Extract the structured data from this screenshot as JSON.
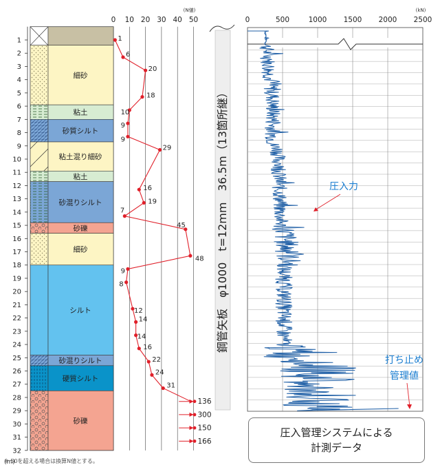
{
  "left_axis": {
    "unit": "(N値)",
    "ticks": [
      "0",
      "10",
      "20",
      "30",
      "40",
      "50"
    ],
    "depth_unit": "(m)",
    "depths": [
      "1",
      "2",
      "3",
      "4",
      "5",
      "6",
      "7",
      "8",
      "9",
      "10",
      "11",
      "12",
      "13",
      "14",
      "15",
      "16",
      "17",
      "18",
      "19",
      "20",
      "21",
      "22",
      "23",
      "24",
      "25",
      "26",
      "27",
      "28",
      "29",
      "30",
      "31",
      "32"
    ]
  },
  "strata": [
    {
      "label": "",
      "top": 0,
      "bottom": 1.4,
      "color": "#c8c0a4",
      "pattern": "cross"
    },
    {
      "label": "細砂",
      "top": 1.4,
      "bottom": 5.9,
      "color": "#fdf5c4",
      "pattern": "dots"
    },
    {
      "label": "粘土",
      "top": 5.9,
      "bottom": 7.0,
      "color": "#d7ecd2",
      "pattern": "dash"
    },
    {
      "label": "砂質シルト",
      "top": 7.0,
      "bottom": 8.7,
      "color": "#7ba6d6",
      "pattern": "hatch"
    },
    {
      "label": "粘土混り細砂",
      "top": 8.7,
      "bottom": 10.9,
      "color": "#fdf5c4",
      "pattern": "slash"
    },
    {
      "label": "粘土",
      "top": 10.9,
      "bottom": 11.7,
      "color": "#d7ecd2",
      "pattern": "dash"
    },
    {
      "label": "砂混りシルト",
      "top": 11.7,
      "bottom": 14.8,
      "color": "#7ba6d6",
      "pattern": "dash"
    },
    {
      "label": "砂礫",
      "top": 14.8,
      "bottom": 15.6,
      "color": "#f4a491",
      "pattern": "circles"
    },
    {
      "label": "細砂",
      "top": 15.6,
      "bottom": 18.0,
      "color": "#fdf5c4",
      "pattern": "dots"
    },
    {
      "label": "シルト",
      "top": 18.0,
      "bottom": 24.8,
      "color": "#63c2ef",
      "pattern": "none"
    },
    {
      "label": "砂混りシルト",
      "top": 24.8,
      "bottom": 25.6,
      "color": "#7ba6d6",
      "pattern": "hatch"
    },
    {
      "label": "硬質シルト",
      "top": 25.6,
      "bottom": 27.5,
      "color": "#0a93c9",
      "pattern": "vdash"
    },
    {
      "label": "砂礫",
      "top": 27.5,
      "bottom": 32.0,
      "color": "#f4a491",
      "pattern": "circles"
    }
  ],
  "n_values": [
    {
      "depth": 1.0,
      "n": 1,
      "label": "1"
    },
    {
      "depth": 2.3,
      "n": 6,
      "label": "6"
    },
    {
      "depth": 3.3,
      "n": 20,
      "label": "20"
    },
    {
      "depth": 5.3,
      "n": 18,
      "label": "18"
    },
    {
      "depth": 6.3,
      "n": 10,
      "label": "10"
    },
    {
      "depth": 7.3,
      "n": 9,
      "label": "9"
    },
    {
      "depth": 8.3,
      "n": 9,
      "label": "9"
    },
    {
      "depth": 9.3,
      "n": 29,
      "label": "29"
    },
    {
      "depth": 12.3,
      "n": 16,
      "label": "16"
    },
    {
      "depth": 13.3,
      "n": 19,
      "label": "19"
    },
    {
      "depth": 14.3,
      "n": 7,
      "label": "7"
    },
    {
      "depth": 15.3,
      "n": 45,
      "label": "45"
    },
    {
      "depth": 17.3,
      "n": 48,
      "label": "48"
    },
    {
      "depth": 18.3,
      "n": 9,
      "label": "9"
    },
    {
      "depth": 19.3,
      "n": 8,
      "label": "8"
    },
    {
      "depth": 21.3,
      "n": 12,
      "label": "12"
    },
    {
      "depth": 22.3,
      "n": 14,
      "label": "14"
    },
    {
      "depth": 23.3,
      "n": 14,
      "label": "14"
    },
    {
      "depth": 24.3,
      "n": 16,
      "label": "16"
    },
    {
      "depth": 25.3,
      "n": 22,
      "label": "22"
    },
    {
      "depth": 26.3,
      "n": 24,
      "label": "24"
    },
    {
      "depth": 27.3,
      "n": 31,
      "label": "31"
    }
  ],
  "over_50": [
    {
      "depth": 28.3,
      "label": "136"
    },
    {
      "depth": 29.3,
      "label": "300"
    },
    {
      "depth": 30.3,
      "label": "150"
    },
    {
      "depth": 31.3,
      "label": "166"
    }
  ],
  "pile_label": "鋼管矢板　φ1000　t=12mm　36.5m（13箇所継）",
  "right_axis": {
    "unit": "(kN)",
    "ticks": [
      "0",
      "500",
      "1000",
      "1500",
      "2000",
      "2500"
    ]
  },
  "annotations": {
    "press_force": "圧入力",
    "stop_line1": "打ち止め",
    "stop_line2": "管理値"
  },
  "caption": {
    "line1": "圧入管理システムによる",
    "line2": "計測データ"
  },
  "footnote": "※ 50を超える場合は換算N値とする。",
  "colors": {
    "trace": "#1f5fa6",
    "red": "#e0202a",
    "annot": "#1a7dd0"
  }
}
